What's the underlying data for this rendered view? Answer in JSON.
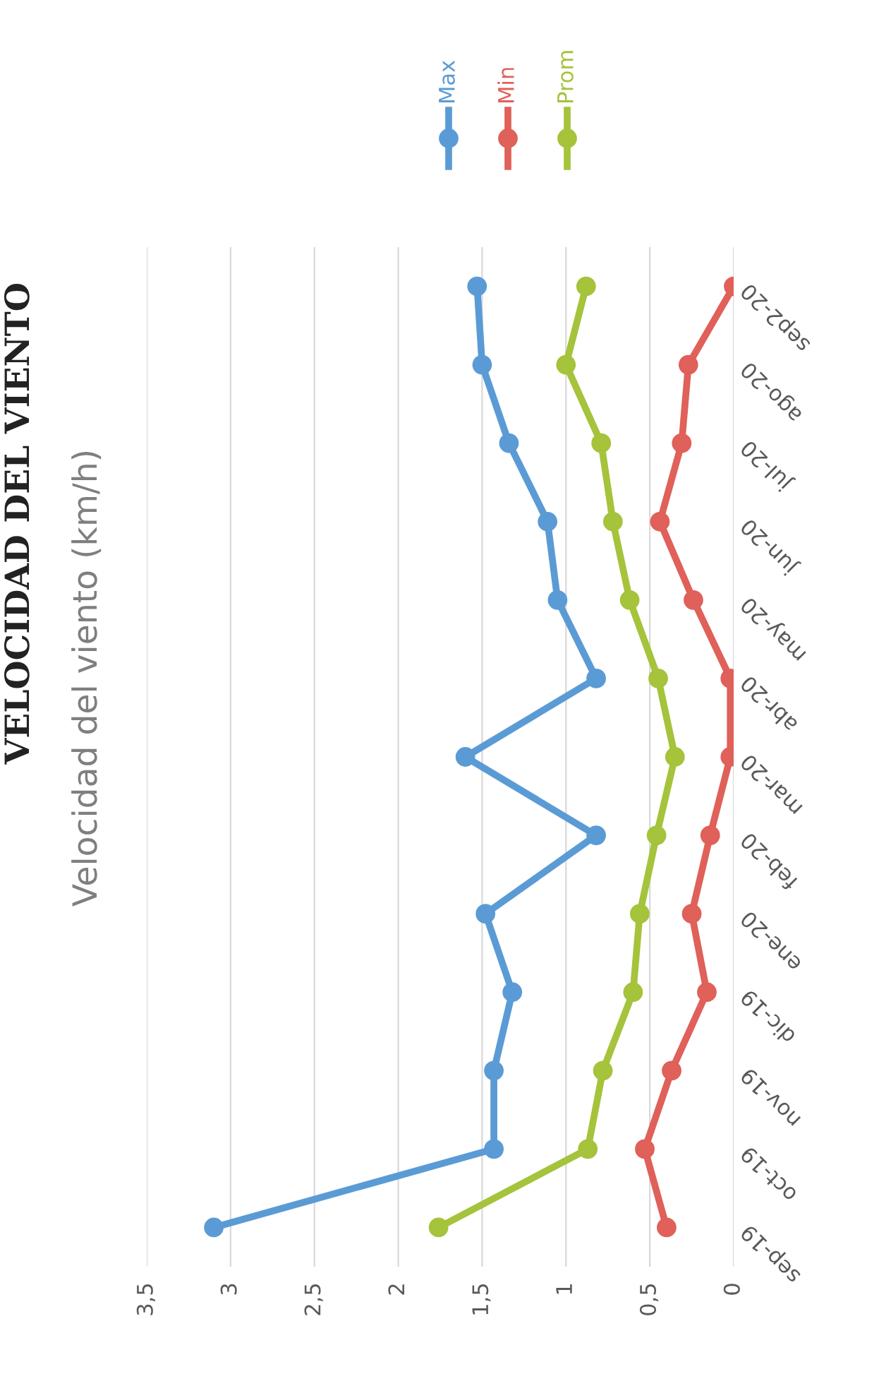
{
  "chart_data": {
    "type": "line",
    "orientation": "horizontal",
    "title": "Velocidad del viento (km/h)",
    "annotations": [
      "VELOCIDAD DEL VIENTO"
    ],
    "categories": [
      "sep2-20",
      "ago-20",
      "jul-20",
      "jun-20",
      "may-20",
      "abr-20",
      "mar-20",
      "feb-20",
      "ene-20",
      "dic-19",
      "nov-19",
      "oct-19",
      "sep-19"
    ],
    "series": [
      {
        "name": "Max",
        "color": "#5b9bd5",
        "values": [
          1.53,
          1.5,
          1.34,
          1.11,
          1.05,
          0.82,
          1.6,
          0.82,
          1.48,
          1.32,
          1.43,
          1.43,
          3.1
        ]
      },
      {
        "name": "Min",
        "color": "#e0605a",
        "values": [
          0.0,
          0.27,
          0.31,
          0.44,
          0.24,
          0.02,
          0.02,
          0.14,
          0.25,
          0.16,
          0.37,
          0.53,
          0.4
        ]
      },
      {
        "name": "Prom",
        "color": "#a5c33b",
        "values": [
          0.88,
          1.0,
          0.79,
          0.72,
          0.62,
          0.45,
          0.35,
          0.46,
          0.56,
          0.6,
          0.78,
          0.87,
          1.76
        ]
      }
    ],
    "xlim": [
      3.5,
      0
    ],
    "xticks": [
      0,
      {
        "value": 0.5,
        "label": "0,5"
      },
      1,
      {
        "value": 1.5,
        "label": "1,5"
      },
      2,
      {
        "value": 2.5,
        "label": "2,5"
      },
      3,
      {
        "value": 3.5,
        "label": "3,5"
      }
    ],
    "grid": "x",
    "legend": "top",
    "marker": "circle",
    "line_style": "solid"
  }
}
